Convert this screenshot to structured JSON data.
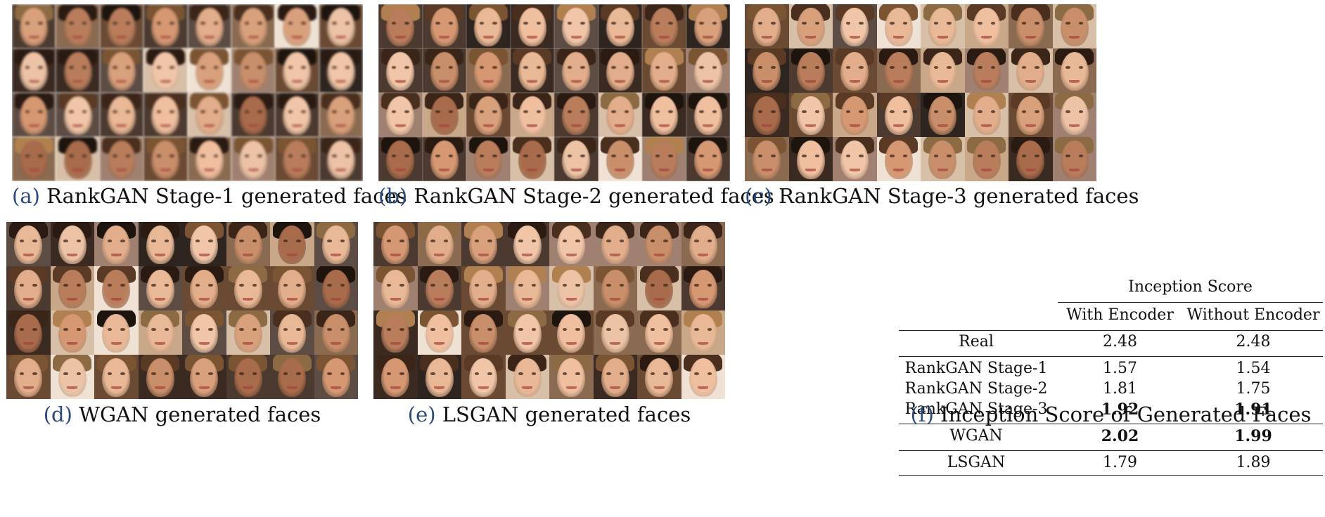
{
  "panels": [
    {
      "tag": "(a)",
      "caption": "RankGAN Stage-1 generated faces"
    },
    {
      "tag": "(b)",
      "caption": "RankGAN Stage-2 generated faces"
    },
    {
      "tag": "(c)",
      "caption": "RankGAN Stage-3 generated faces"
    },
    {
      "tag": "(d)",
      "caption": "WGAN generated faces"
    },
    {
      "tag": "(e)",
      "caption": "LSGAN generated faces"
    }
  ],
  "table": {
    "tag": "(f)",
    "caption": "Inception Score of Generated Faces",
    "group_header": "Inception Score",
    "col_headers": [
      "With Encoder",
      "Without Encoder"
    ],
    "rows": [
      {
        "label": "Real",
        "with": "2.48",
        "without": "2.48"
      },
      {
        "label": "RankGAN Stage-1",
        "with": "1.57",
        "without": "1.54"
      },
      {
        "label": "RankGAN Stage-2",
        "with": "1.81",
        "without": "1.75"
      },
      {
        "label": "RankGAN Stage-3",
        "with": "1.92",
        "without": "1.91",
        "bold": true
      },
      {
        "label": "WGAN",
        "with": "2.02",
        "without": "1.99",
        "bold": true
      },
      {
        "label": "LSGAN",
        "with": "1.79",
        "without": "1.89"
      }
    ]
  }
}
